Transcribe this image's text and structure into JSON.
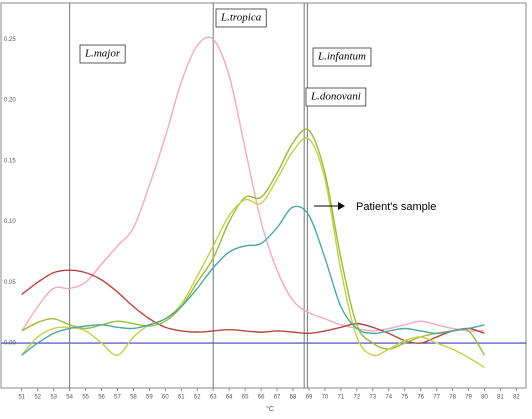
{
  "chart_data": {
    "type": "line",
    "x_label": "°C",
    "x": [
      51,
      52,
      53,
      54,
      55,
      56,
      57,
      58,
      59,
      60,
      61,
      62,
      63,
      64,
      65,
      66,
      67,
      68,
      69,
      70,
      71,
      72,
      73,
      74,
      75,
      76,
      77,
      78,
      79,
      80
    ],
    "series": [
      {
        "color": "#f2a9c4",
        "values": [
          0.01,
          0.03,
          0.045,
          0.045,
          0.05,
          0.065,
          0.08,
          0.095,
          0.13,
          0.17,
          0.215,
          0.245,
          0.25,
          0.22,
          0.16,
          0.1,
          0.06,
          0.035,
          0.025,
          0.02,
          0.015,
          0.012,
          0.01,
          0.012,
          0.015,
          0.018,
          0.015,
          0.012,
          0.01,
          0.01
        ]
      },
      {
        "color": "#b8453e",
        "values": [
          0.04,
          0.05,
          0.058,
          0.06,
          0.058,
          0.052,
          0.042,
          0.03,
          0.02,
          0.013,
          0.01,
          0.009,
          0.01,
          0.011,
          0.01,
          0.009,
          0.01,
          0.009,
          0.008,
          0.01,
          0.013,
          0.016,
          0.013,
          0.008,
          0.002,
          0.0,
          0.005,
          0.01,
          0.012,
          0.008
        ]
      },
      {
        "color": "#9bbb3b",
        "values": [
          0.01,
          0.017,
          0.02,
          0.015,
          0.012,
          0.015,
          0.018,
          0.016,
          0.014,
          0.018,
          0.03,
          0.05,
          0.07,
          0.1,
          0.12,
          0.12,
          0.14,
          0.165,
          0.175,
          0.14,
          0.07,
          0.015,
          0.0,
          -0.005,
          0.0,
          0.005,
          0.008,
          0.01,
          0.01,
          -0.01
        ]
      },
      {
        "color": "#c6cf4a",
        "values": [
          -0.01,
          0.005,
          0.012,
          0.013,
          0.01,
          0.0,
          -0.01,
          0.005,
          0.015,
          0.02,
          0.032,
          0.055,
          0.08,
          0.105,
          0.118,
          0.115,
          0.135,
          0.158,
          0.168,
          0.135,
          0.06,
          0.005,
          -0.01,
          -0.005,
          0.002,
          0.005,
          0.0,
          -0.005,
          -0.012,
          -0.02
        ]
      },
      {
        "color": "#4aa8a0",
        "values": [
          -0.01,
          0.0,
          0.008,
          0.012,
          0.014,
          0.015,
          0.013,
          0.012,
          0.015,
          0.02,
          0.03,
          0.045,
          0.062,
          0.075,
          0.08,
          0.082,
          0.095,
          0.112,
          0.105,
          0.07,
          0.03,
          0.012,
          0.008,
          0.01,
          0.012,
          0.01,
          0.008,
          0.01,
          0.012,
          0.015
        ]
      }
    ],
    "xlim": [
      49.7,
      82.6
    ],
    "ylim": [
      -0.037,
      0.28
    ],
    "xticks": [
      51,
      52,
      53,
      54,
      55,
      56,
      57,
      58,
      59,
      60,
      61,
      62,
      63,
      64,
      65,
      66,
      67,
      68,
      69,
      70,
      71,
      72,
      73,
      74,
      75,
      76,
      77,
      78,
      79,
      80,
      81,
      82
    ],
    "yticks": [
      {
        "value": 0,
        "label": "0.00"
      },
      {
        "value": 0.05,
        "label": "0.05"
      },
      {
        "value": 0.1,
        "label": "0.10"
      },
      {
        "value": 0.15,
        "label": "0.15"
      },
      {
        "value": 0.2,
        "label": "0.20"
      },
      {
        "value": 0.25,
        "label": "0.25"
      }
    ],
    "baseline_color": "#3f3fc0",
    "markers": [
      {
        "text": "L.major",
        "x": 54
      },
      {
        "text": "L.tropica",
        "x": 63
      },
      {
        "text": "L.infantum",
        "x": 68.9
      },
      {
        "text": "L.donovani",
        "x": 68.7
      }
    ],
    "annotation": "Patient's sample"
  }
}
